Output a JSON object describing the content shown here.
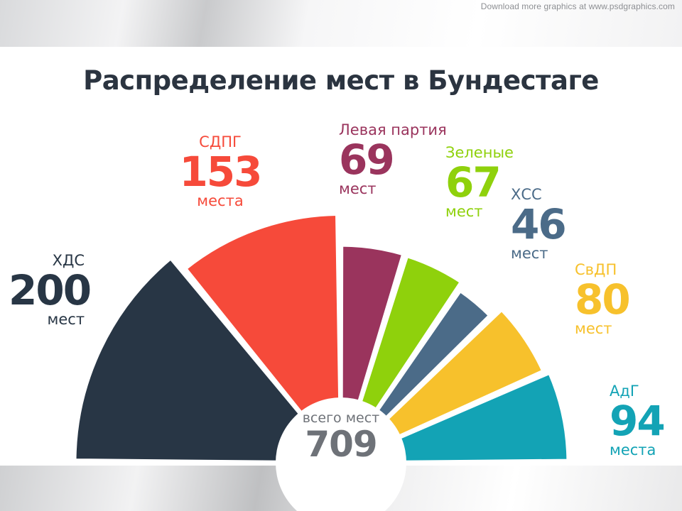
{
  "watermark": "Download more graphics at www.psdgraphics.com",
  "title": "Распределение мест в Бундестаге",
  "center": {
    "label": "всего мест",
    "total": "709"
  },
  "chart_data": {
    "type": "pie",
    "title": "Распределение мест в Бундестаге",
    "total": 709,
    "series": [
      {
        "name": "ХДС",
        "value": 200,
        "unit": "мест",
        "color": "#283645"
      },
      {
        "name": "СДПГ",
        "value": 153,
        "unit": "места",
        "color": "#f64a3a"
      },
      {
        "name": "Левая партия",
        "value": 69,
        "unit": "мест",
        "color": "#9a345d"
      },
      {
        "name": "Зеленые",
        "value": 67,
        "unit": "мест",
        "color": "#8fd10c"
      },
      {
        "name": "ХСС",
        "value": 46,
        "unit": "мест",
        "color": "#4b6b88"
      },
      {
        "name": "СвДП",
        "value": 80,
        "unit": "мест",
        "color": "#f7c12c"
      },
      {
        "name": "АдГ",
        "value": 94,
        "unit": "места",
        "color": "#13a3b5"
      }
    ]
  }
}
